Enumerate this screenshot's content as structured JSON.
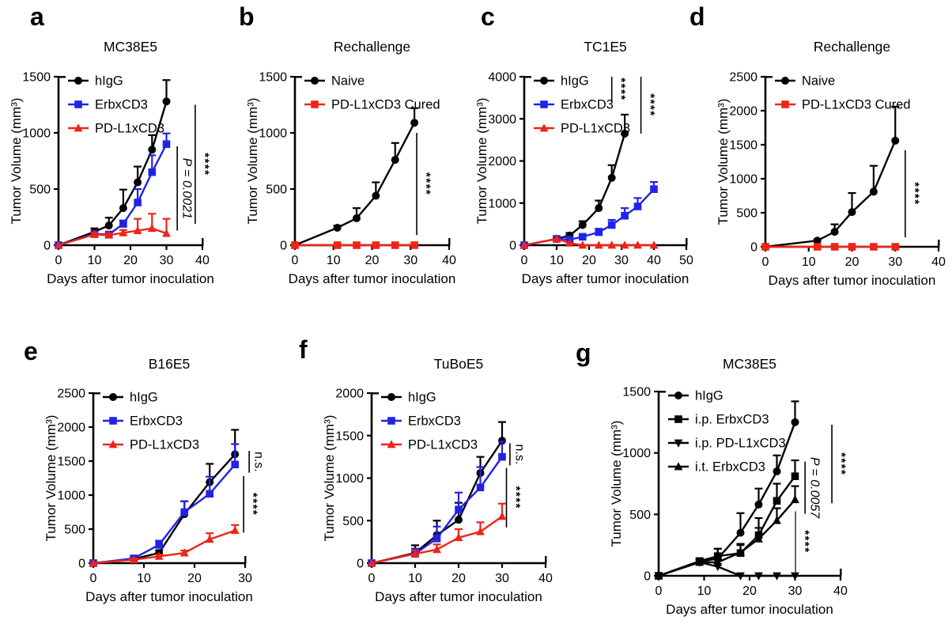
{
  "figure": {
    "background": "#ffffff",
    "description": "Tumor growth curves, panels a-g"
  },
  "colors": {
    "black": "#000000",
    "blue": "#2222e6",
    "red": "#ee2418"
  },
  "chart_data": [
    {
      "panel": "a",
      "type": "line",
      "title": "MC38E5",
      "xlabel": "Days after tumor inoculation",
      "ylabel": "Tumor Volume (mm³)",
      "xlim": [
        0,
        40
      ],
      "ylim": [
        0,
        1500
      ],
      "xticks": [
        0,
        10,
        20,
        30,
        40
      ],
      "yticks": [
        0,
        500,
        1000,
        1500
      ],
      "grid": false,
      "legend_position": "top-left",
      "series": [
        {
          "name": "hIgG",
          "color": "black",
          "marker": "circle",
          "x": [
            0,
            10,
            14,
            18,
            22,
            26,
            30
          ],
          "y": [
            0,
            120,
            175,
            330,
            560,
            850,
            1280
          ],
          "err": [
            0,
            30,
            70,
            165,
            140,
            130,
            190
          ]
        },
        {
          "name": "ErbxCD3",
          "color": "blue",
          "marker": "square",
          "x": [
            0,
            10,
            14,
            18,
            22,
            26,
            30
          ],
          "y": [
            0,
            100,
            95,
            190,
            380,
            650,
            900
          ],
          "err": [
            0,
            15,
            15,
            30,
            120,
            150,
            95
          ]
        },
        {
          "name": "PD-L1xCD3",
          "color": "red",
          "marker": "triangle-up",
          "x": [
            0,
            10,
            14,
            18,
            22,
            26,
            30
          ],
          "y": [
            0,
            95,
            90,
            110,
            130,
            150,
            105
          ],
          "err": [
            0,
            15,
            15,
            25,
            105,
            130,
            130
          ]
        }
      ],
      "annotations": [
        {
          "x": 33,
          "y1": 130,
          "y2": 880,
          "text": "P = 0.0021",
          "italic": true
        },
        {
          "x": 38,
          "y1": 190,
          "y2": 1250,
          "text": "****"
        }
      ]
    },
    {
      "panel": "b",
      "type": "line",
      "title": "Rechallenge",
      "xlabel": "Days after tumor inoculation",
      "ylabel": "Tumor Volume (mm³)",
      "xlim": [
        0,
        40
      ],
      "ylim": [
        0,
        1500
      ],
      "xticks": [
        0,
        10,
        20,
        30,
        40
      ],
      "yticks": [
        0,
        500,
        1000,
        1500
      ],
      "grid": false,
      "legend_position": "top-left",
      "series": [
        {
          "name": "Naive",
          "color": "black",
          "marker": "circle",
          "x": [
            0,
            11,
            16,
            21,
            26,
            31
          ],
          "y": [
            0,
            155,
            240,
            440,
            760,
            1090
          ],
          "err": [
            0,
            20,
            90,
            120,
            150,
            130
          ]
        },
        {
          "name": "PD-L1xCD3 Cured",
          "color": "red",
          "marker": "square",
          "x": [
            0,
            11,
            16,
            21,
            26,
            31
          ],
          "y": [
            0,
            0,
            0,
            0,
            0,
            0
          ],
          "err": [
            0,
            0,
            0,
            0,
            0,
            0
          ]
        }
      ],
      "annotations": [
        {
          "x": 31.6,
          "y1": 90,
          "y2": 1000,
          "text": "****"
        }
      ]
    },
    {
      "panel": "c",
      "type": "line",
      "title": "TC1E5",
      "xlabel": "Days after tumor inoculation",
      "ylabel": "Tumor Volume (mm³)",
      "xlim": [
        0,
        50
      ],
      "ylim": [
        0,
        4000
      ],
      "xticks": [
        0,
        10,
        20,
        30,
        40,
        50
      ],
      "yticks": [
        0,
        1000,
        2000,
        3000,
        4000
      ],
      "grid": false,
      "legend_position": "top-left",
      "series": [
        {
          "name": "hIgG",
          "color": "black",
          "marker": "circle",
          "x": [
            0,
            10,
            14,
            18,
            23,
            27,
            31
          ],
          "y": [
            0,
            150,
            230,
            480,
            880,
            1600,
            2650
          ],
          "err": [
            0,
            30,
            60,
            90,
            180,
            300,
            450
          ]
        },
        {
          "name": "ErbxCD3",
          "color": "blue",
          "marker": "square",
          "x": [
            0,
            10,
            14,
            18,
            23,
            27,
            31,
            35,
            40
          ],
          "y": [
            0,
            150,
            130,
            200,
            310,
            480,
            700,
            920,
            1330
          ],
          "err": [
            0,
            30,
            30,
            40,
            80,
            120,
            180,
            200,
            170
          ]
        },
        {
          "name": "PD-L1xCD3",
          "color": "red",
          "marker": "triangle-up",
          "x": [
            0,
            10,
            14,
            18,
            23,
            27,
            31,
            35,
            40
          ],
          "y": [
            0,
            150,
            50,
            0,
            0,
            0,
            0,
            0,
            0
          ],
          "err": [
            0,
            0,
            0,
            0,
            0,
            0,
            0,
            0,
            0
          ]
        }
      ],
      "annotations": [
        {
          "x": 27,
          "y1": 3400,
          "y2": 4000,
          "text": "****"
        },
        {
          "x": 36,
          "y1": 2650,
          "y2": 4000,
          "text": "****"
        }
      ]
    },
    {
      "panel": "d",
      "type": "line",
      "title": "Rechallenge",
      "xlabel": "Days after tumor inoculation",
      "ylabel": "Tumor Volume (mm³)",
      "xlim": [
        0,
        40
      ],
      "ylim": [
        0,
        2500
      ],
      "xticks": [
        0,
        10,
        20,
        30,
        40
      ],
      "yticks": [
        0,
        500,
        1000,
        1500,
        2000,
        2500
      ],
      "grid": false,
      "legend_position": "top-left",
      "series": [
        {
          "name": "Naive",
          "color": "black",
          "marker": "circle",
          "x": [
            0,
            12,
            16,
            20,
            25,
            30
          ],
          "y": [
            0,
            90,
            220,
            510,
            810,
            1560
          ],
          "err": [
            0,
            20,
            110,
            280,
            380,
            500
          ]
        },
        {
          "name": "PD-L1xCD3 Cured",
          "color": "red",
          "marker": "square",
          "x": [
            0,
            12,
            16,
            20,
            25,
            30
          ],
          "y": [
            0,
            0,
            0,
            0,
            0,
            0
          ],
          "err": [
            0,
            0,
            0,
            0,
            0,
            0
          ]
        }
      ],
      "annotations": [
        {
          "x": 32.3,
          "y1": 140,
          "y2": 1420,
          "text": "****"
        }
      ]
    },
    {
      "panel": "e",
      "type": "line",
      "title": "B16E5",
      "xlabel": "Days after tumor inoculation",
      "ylabel": "Tumor Volume (mm³)",
      "xlim": [
        0,
        30
      ],
      "ylim": [
        0,
        2500
      ],
      "xticks": [
        0,
        10,
        20,
        30
      ],
      "yticks": [
        0,
        500,
        1000,
        1500,
        2000,
        2500
      ],
      "grid": false,
      "legend_position": "top-left",
      "series": [
        {
          "name": "hIgG",
          "color": "black",
          "marker": "circle",
          "x": [
            0,
            8,
            13,
            18,
            23,
            28
          ],
          "y": [
            0,
            60,
            150,
            720,
            1190,
            1600
          ],
          "err": [
            0,
            15,
            40,
            190,
            270,
            360
          ]
        },
        {
          "name": "ErbxCD3",
          "color": "blue",
          "marker": "square",
          "x": [
            0,
            8,
            13,
            18,
            23,
            28
          ],
          "y": [
            0,
            70,
            270,
            750,
            1020,
            1450
          ],
          "err": [
            0,
            20,
            60,
            160,
            250,
            300
          ]
        },
        {
          "name": "PD-L1xCD3",
          "color": "red",
          "marker": "triangle-up",
          "x": [
            0,
            8,
            13,
            18,
            23,
            28
          ],
          "y": [
            0,
            50,
            100,
            150,
            350,
            480
          ],
          "err": [
            0,
            15,
            25,
            35,
            90,
            80
          ]
        }
      ],
      "annotations": [
        {
          "x": 30.8,
          "y1": 1330,
          "y2": 1650,
          "text": "n.s."
        },
        {
          "x": 29.7,
          "y1": 450,
          "y2": 1280,
          "text": "****"
        }
      ]
    },
    {
      "panel": "f",
      "type": "line",
      "title": "TuBoE5",
      "xlabel": "Days after tumor inoculation",
      "ylabel": "Tumor Volume (mm³)",
      "xlim": [
        0,
        40
      ],
      "ylim": [
        0,
        2000
      ],
      "xticks": [
        0,
        10,
        20,
        30,
        40
      ],
      "yticks": [
        0,
        500,
        1000,
        1500,
        2000
      ],
      "grid": false,
      "legend_position": "top-left",
      "series": [
        {
          "name": "hIgG",
          "color": "black",
          "marker": "circle",
          "x": [
            0,
            10,
            15,
            20,
            25,
            30
          ],
          "y": [
            0,
            120,
            330,
            510,
            1060,
            1440
          ],
          "err": [
            0,
            90,
            170,
            200,
            190,
            220
          ]
        },
        {
          "name": "ErbxCD3",
          "color": "blue",
          "marker": "square",
          "x": [
            0,
            10,
            15,
            20,
            25,
            30
          ],
          "y": [
            0,
            110,
            290,
            630,
            890,
            1250
          ],
          "err": [
            0,
            60,
            140,
            200,
            240,
            180
          ]
        },
        {
          "name": "PD-L1xCD3",
          "color": "red",
          "marker": "triangle-up",
          "x": [
            0,
            10,
            15,
            20,
            25,
            30
          ],
          "y": [
            0,
            110,
            160,
            300,
            370,
            550
          ],
          "err": [
            0,
            40,
            60,
            100,
            110,
            150
          ]
        }
      ],
      "annotations": [
        {
          "x": 31.8,
          "y1": 1150,
          "y2": 1410,
          "text": "n.s."
        },
        {
          "x": 31,
          "y1": 420,
          "y2": 1120,
          "text": "****"
        }
      ]
    },
    {
      "panel": "g",
      "type": "line",
      "title": "MC38E5",
      "xlabel": "Days after tumor inoculation",
      "ylabel": "Tumor Volume (mm³)",
      "xlim": [
        0,
        40
      ],
      "ylim": [
        0,
        1500
      ],
      "xticks": [
        0,
        10,
        20,
        30,
        40
      ],
      "yticks": [
        0,
        500,
        1000,
        1500
      ],
      "grid": false,
      "legend_position": "top-left",
      "series": [
        {
          "name": "hIgG",
          "color": "black",
          "marker": "circle",
          "x": [
            0,
            9,
            13,
            18,
            22,
            26,
            30
          ],
          "y": [
            0,
            115,
            140,
            350,
            580,
            850,
            1250
          ],
          "err": [
            0,
            25,
            80,
            160,
            130,
            130,
            170
          ]
        },
        {
          "name": "i.p. ErbxCD3",
          "color": "black",
          "marker": "square",
          "x": [
            0,
            9,
            13,
            18,
            22,
            26,
            30
          ],
          "y": [
            0,
            120,
            160,
            185,
            330,
            610,
            810
          ],
          "err": [
            0,
            20,
            60,
            75,
            140,
            140,
            130
          ]
        },
        {
          "name": "i.p. PD-L1xCD3",
          "color": "black",
          "marker": "triangle-down",
          "x": [
            0,
            9,
            13,
            18,
            22,
            26,
            30
          ],
          "y": [
            0,
            110,
            75,
            0,
            0,
            0,
            0
          ],
          "err": [
            0,
            25,
            55,
            0,
            0,
            0,
            0
          ]
        },
        {
          "name": "i.t. ErbxCD3",
          "color": "black",
          "marker": "triangle-up",
          "x": [
            0,
            9,
            13,
            18,
            22,
            26,
            30
          ],
          "y": [
            0,
            110,
            110,
            190,
            300,
            450,
            620
          ],
          "err": [
            0,
            20,
            40,
            60,
            90,
            100,
            110
          ]
        }
      ],
      "annotations": [
        {
          "x": 38.1,
          "y1": 590,
          "y2": 1230,
          "text": "****"
        },
        {
          "x": 32.2,
          "y1": 505,
          "y2": 930,
          "text": "P = 0.0057",
          "italic": true
        },
        {
          "x": 30.1,
          "y1": 30,
          "y2": 525,
          "text": "****",
          "thin": true
        }
      ]
    }
  ]
}
